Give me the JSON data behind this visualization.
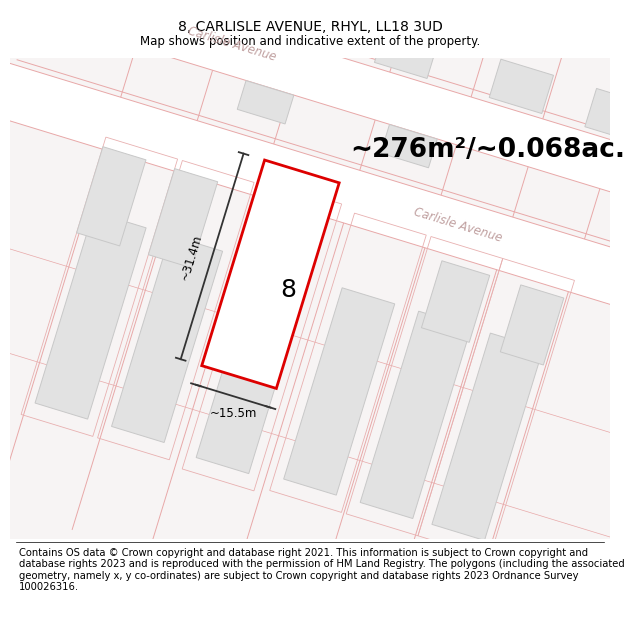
{
  "title": "8, CARLISLE AVENUE, RHYL, LL18 3UD",
  "subtitle": "Map shows position and indicative extent of the property.",
  "area_text": "~276m²/~0.068ac.",
  "property_number": "8",
  "dim_height": "~31.4m",
  "dim_width": "~15.5m",
  "street_label_upper": "Carlisle Avenue",
  "street_label_lower": "Carlisle Avenue",
  "footer": "Contains OS data © Crown copyright and database right 2021. This information is subject to Crown copyright and database rights 2023 and is reproduced with the permission of HM Land Registry. The polygons (including the associated geometry, namely x, y co-ordinates) are subject to Crown copyright and database rights 2023 Ordnance Survey 100026316.",
  "map_bg": "#f7f4f4",
  "road_fill": "#ffffff",
  "building_fill": "#e2e2e2",
  "building_edge": "#c8c8c8",
  "plot_outline_fill": "#eeeeee",
  "plot_outline_edge": "#e8b0b0",
  "subject_fill": "#ffffff",
  "subject_edge": "#dd0000",
  "dim_line_color": "#333333",
  "street_label_color": "#c0a0a0",
  "pink_line": "#e8a8a8",
  "title_fontsize": 10,
  "subtitle_fontsize": 8.5,
  "area_fontsize": 19,
  "footer_fontsize": 7.2,
  "map_rot_deg": -17
}
